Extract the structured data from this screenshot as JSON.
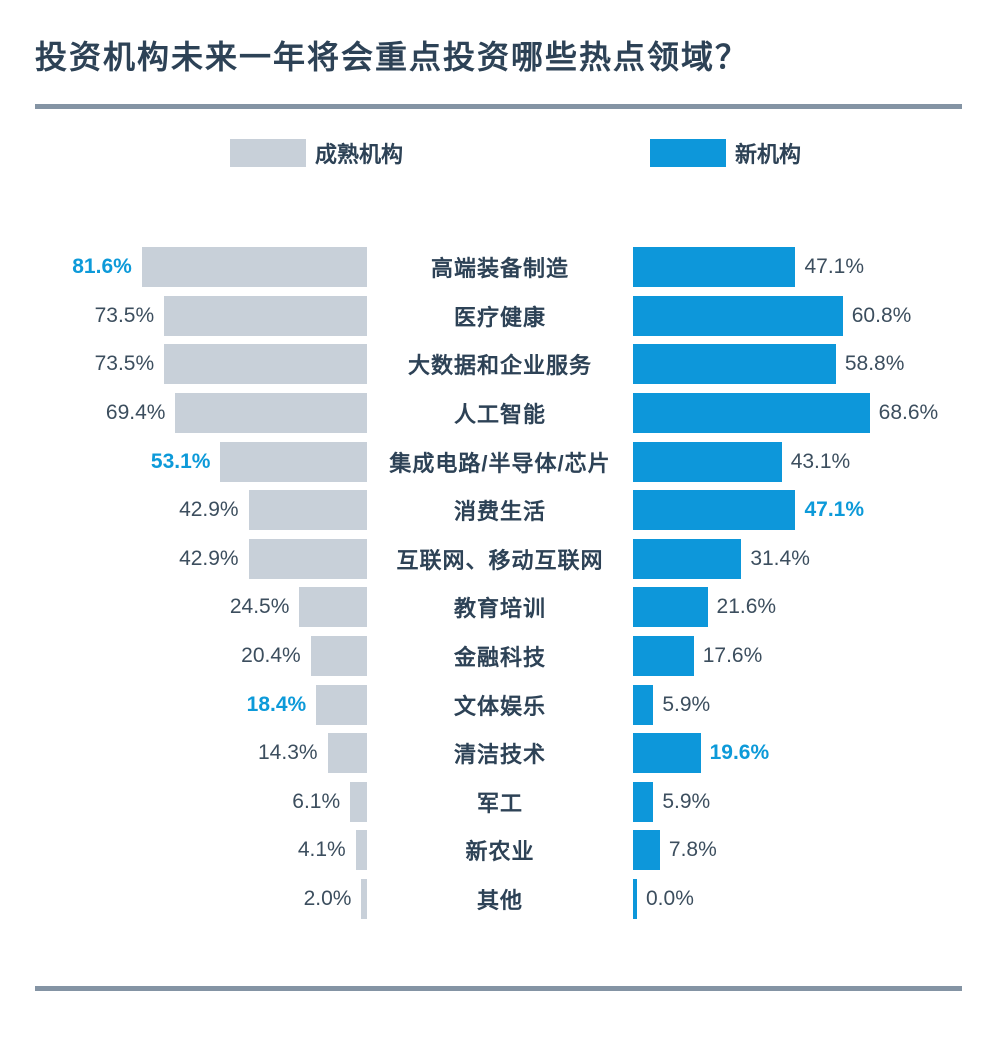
{
  "title": "投资机构未来一年将会重点投资哪些热点领域？",
  "legend": {
    "items": [
      {
        "label": "成熟机构",
        "color": "#c8d0d9"
      },
      {
        "label": "新机构",
        "color": "#0d97da"
      }
    ]
  },
  "colors": {
    "title_text": "#2d4256",
    "value_text": "#3c4e5e",
    "highlight_text": "#0d9ad9",
    "bar_gray": "#c8d0d9",
    "bar_blue": "#0d97da",
    "divider": "#8494a4",
    "page_bg": "#ffffff"
  },
  "chart_data": {
    "type": "bar",
    "orientation": "horizontal-diverging",
    "unit": "%",
    "legend_position": "top",
    "value_label_format": "{value}%",
    "categories": [
      "高端装备制造",
      "医疗健康",
      "大数据和企业服务",
      "人工智能",
      "集成电路/半导体/芯片",
      "消费生活",
      "互联网、移动互联网",
      "教育培训",
      "金融科技",
      "文体娱乐",
      "清洁技术",
      "军工",
      "新农业",
      "其他"
    ],
    "series": [
      {
        "name": "成熟机构",
        "side": "left",
        "color": "#c8d0d9",
        "values": [
          81.6,
          73.5,
          73.5,
          69.4,
          53.1,
          42.9,
          42.9,
          24.5,
          20.4,
          18.4,
          14.3,
          6.1,
          4.1,
          2.0
        ],
        "highlighted_indices": [
          0,
          4,
          9
        ]
      },
      {
        "name": "新机构",
        "side": "right",
        "color": "#0d97da",
        "values": [
          47.1,
          60.8,
          58.8,
          68.6,
          43.1,
          47.1,
          31.4,
          21.6,
          17.6,
          5.9,
          19.6,
          5.9,
          7.8,
          0.0
        ],
        "highlighted_indices": [
          5,
          10
        ]
      }
    ]
  }
}
